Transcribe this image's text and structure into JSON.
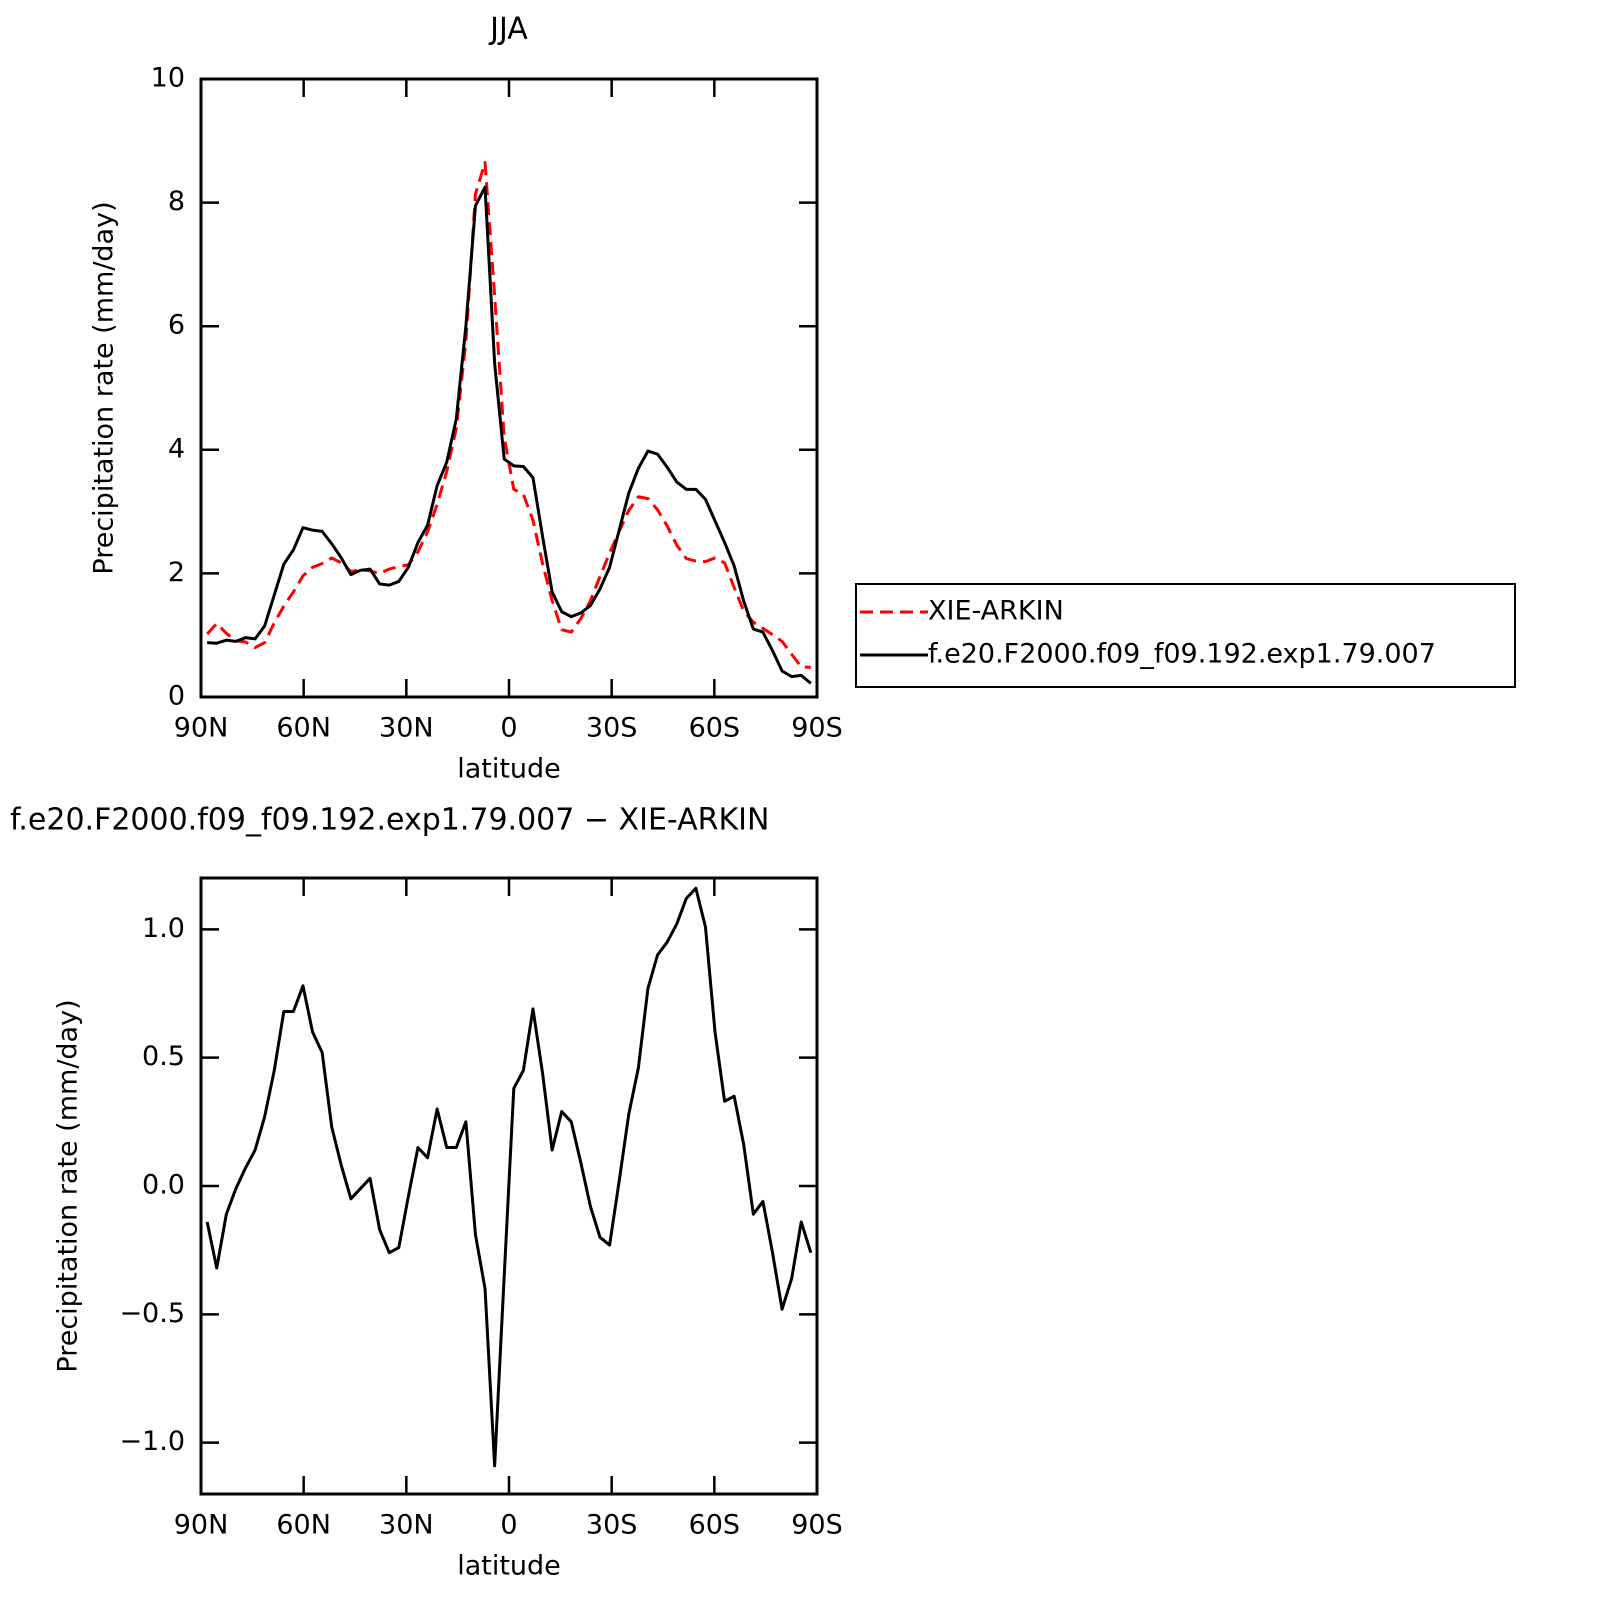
{
  "chart_data": [
    {
      "type": "line",
      "title": "JJA",
      "xlabel": "latitude",
      "ylabel": "Precipitation rate (mm/day)",
      "x": [
        88.2,
        85.4,
        82.6,
        79.8,
        77,
        74.2,
        71.4,
        68.6,
        65.8,
        63,
        60.2,
        57.4,
        54.6,
        51.8,
        49,
        46.2,
        43.4,
        40.6,
        37.8,
        35,
        32.2,
        29.4,
        26.6,
        23.8,
        21,
        18.2,
        15.4,
        12.6,
        9.8,
        7,
        4.2,
        1.4,
        -1.4,
        -4.2,
        -7,
        -9.8,
        -12.6,
        -15.4,
        -18.2,
        -21,
        -23.8,
        -26.6,
        -29.4,
        -32.2,
        -35,
        -37.8,
        -40.6,
        -43.4,
        -46.2,
        -49,
        -51.8,
        -54.6,
        -57.4,
        -60.2,
        -63,
        -65.8,
        -68.6,
        -71.4,
        -74.2,
        -77,
        -79.8,
        -82.6,
        -85.4,
        -88.2
      ],
      "series": [
        {
          "name": "XIE-ARKIN",
          "color": "#ff0000",
          "line_style": "dashed",
          "values": [
            1.02,
            1.19,
            1.03,
            0.91,
            0.89,
            0.8,
            0.88,
            1.2,
            1.47,
            1.7,
            1.96,
            2.1,
            2.16,
            2.25,
            2.17,
            2.03,
            2.06,
            2.04,
            2.0,
            2.07,
            2.11,
            2.14,
            2.35,
            2.67,
            3.12,
            3.65,
            4.35,
            5.75,
            8.14,
            8.65,
            6.49,
            4.2,
            3.36,
            3.28,
            2.86,
            2.16,
            1.56,
            1.09,
            1.05,
            1.27,
            1.56,
            1.95,
            2.33,
            2.68,
            3.02,
            3.24,
            3.21,
            3.03,
            2.77,
            2.46,
            2.24,
            2.2,
            2.19,
            2.25,
            2.17,
            1.77,
            1.39,
            1.21,
            1.11,
            1.01,
            0.9,
            0.69,
            0.49,
            0.48
          ]
        },
        {
          "name": "f.e20.F2000.f09_f09.192.exp1.79.007",
          "color": "#000000",
          "line_style": "solid",
          "values": [
            0.88,
            0.87,
            0.92,
            0.9,
            0.96,
            0.94,
            1.15,
            1.65,
            2.15,
            2.38,
            2.74,
            2.7,
            2.68,
            2.48,
            2.25,
            1.98,
            2.05,
            2.07,
            1.83,
            1.81,
            1.87,
            2.1,
            2.5,
            2.78,
            3.42,
            3.8,
            4.5,
            6.0,
            7.95,
            8.25,
            5.4,
            3.85,
            3.74,
            3.73,
            3.55,
            2.6,
            1.7,
            1.38,
            1.3,
            1.36,
            1.48,
            1.75,
            2.1,
            2.7,
            3.3,
            3.7,
            3.98,
            3.93,
            3.72,
            3.48,
            3.36,
            3.36,
            3.2,
            2.85,
            2.5,
            2.12,
            1.55,
            1.1,
            1.05,
            0.75,
            0.42,
            0.33,
            0.35,
            0.22
          ]
        }
      ],
      "xlim": [
        90,
        -90
      ],
      "ylim": [
        0,
        10
      ],
      "xticks": [
        {
          "value": 90,
          "label": "90N"
        },
        {
          "value": 60,
          "label": "60N"
        },
        {
          "value": 30,
          "label": "30N"
        },
        0,
        {
          "value": -30,
          "label": "30S"
        },
        {
          "value": -60,
          "label": "60S"
        },
        {
          "value": -90,
          "label": "90S"
        }
      ],
      "yticks": [
        0,
        2,
        4,
        6,
        8,
        10
      ],
      "legend": "right"
    },
    {
      "type": "line",
      "title": "f.e20.F2000.f09_f09.192.exp1.79.007 − XIE-ARKIN",
      "xlabel": "latitude",
      "ylabel": "Precipitation rate (mm/day)",
      "x": [
        88.2,
        85.4,
        82.6,
        79.8,
        77,
        74.2,
        71.4,
        68.6,
        65.8,
        63,
        60.2,
        57.4,
        54.6,
        51.8,
        49,
        46.2,
        43.4,
        40.6,
        37.8,
        35,
        32.2,
        29.4,
        26.6,
        23.8,
        21,
        18.2,
        15.4,
        12.6,
        9.8,
        7,
        4.2,
        1.4,
        -1.4,
        -4.2,
        -7,
        -9.8,
        -12.6,
        -15.4,
        -18.2,
        -21,
        -23.8,
        -26.6,
        -29.4,
        -32.2,
        -35,
        -37.8,
        -40.6,
        -43.4,
        -46.2,
        -49,
        -51.8,
        -54.6,
        -57.4,
        -60.2,
        -63,
        -65.8,
        -68.6,
        -71.4,
        -74.2,
        -77,
        -79.8,
        -82.6,
        -85.4,
        -88.2
      ],
      "series": [
        {
          "color": "#000000",
          "line_style": "solid",
          "values": [
            -0.14,
            -0.32,
            -0.11,
            -0.01,
            0.07,
            0.14,
            0.27,
            0.45,
            0.68,
            0.68,
            0.78,
            0.6,
            0.52,
            0.23,
            0.08,
            -0.05,
            -0.01,
            0.03,
            -0.17,
            -0.26,
            -0.24,
            -0.04,
            0.15,
            0.11,
            0.3,
            0.15,
            0.15,
            0.25,
            -0.19,
            -0.4,
            -1.09,
            -0.35,
            0.38,
            0.45,
            0.69,
            0.44,
            0.14,
            0.29,
            0.25,
            0.09,
            -0.08,
            -0.2,
            -0.23,
            0.02,
            0.28,
            0.46,
            0.77,
            0.9,
            0.95,
            1.02,
            1.12,
            1.16,
            1.01,
            0.6,
            0.33,
            0.35,
            0.16,
            -0.11,
            -0.06,
            -0.26,
            -0.48,
            -0.36,
            -0.14,
            -0.26
          ]
        }
      ],
      "xlim": [
        90,
        -90
      ],
      "ylim": [
        -1.2,
        1.2
      ],
      "xticks": [
        {
          "value": 90,
          "label": "90N"
        },
        {
          "value": 60,
          "label": "60N"
        },
        {
          "value": 30,
          "label": "30N"
        },
        0,
        {
          "value": -30,
          "label": "30S"
        },
        {
          "value": -60,
          "label": "60S"
        },
        {
          "value": -90,
          "label": "90S"
        }
      ],
      "yticks": [
        {
          "value": -1.0,
          "label": "−1.0"
        },
        {
          "value": -0.5,
          "label": "−0.5"
        },
        {
          "value": 0.0,
          "label": "0.0"
        },
        0.5,
        {
          "value": 1.0,
          "label": "1.0"
        }
      ]
    }
  ]
}
